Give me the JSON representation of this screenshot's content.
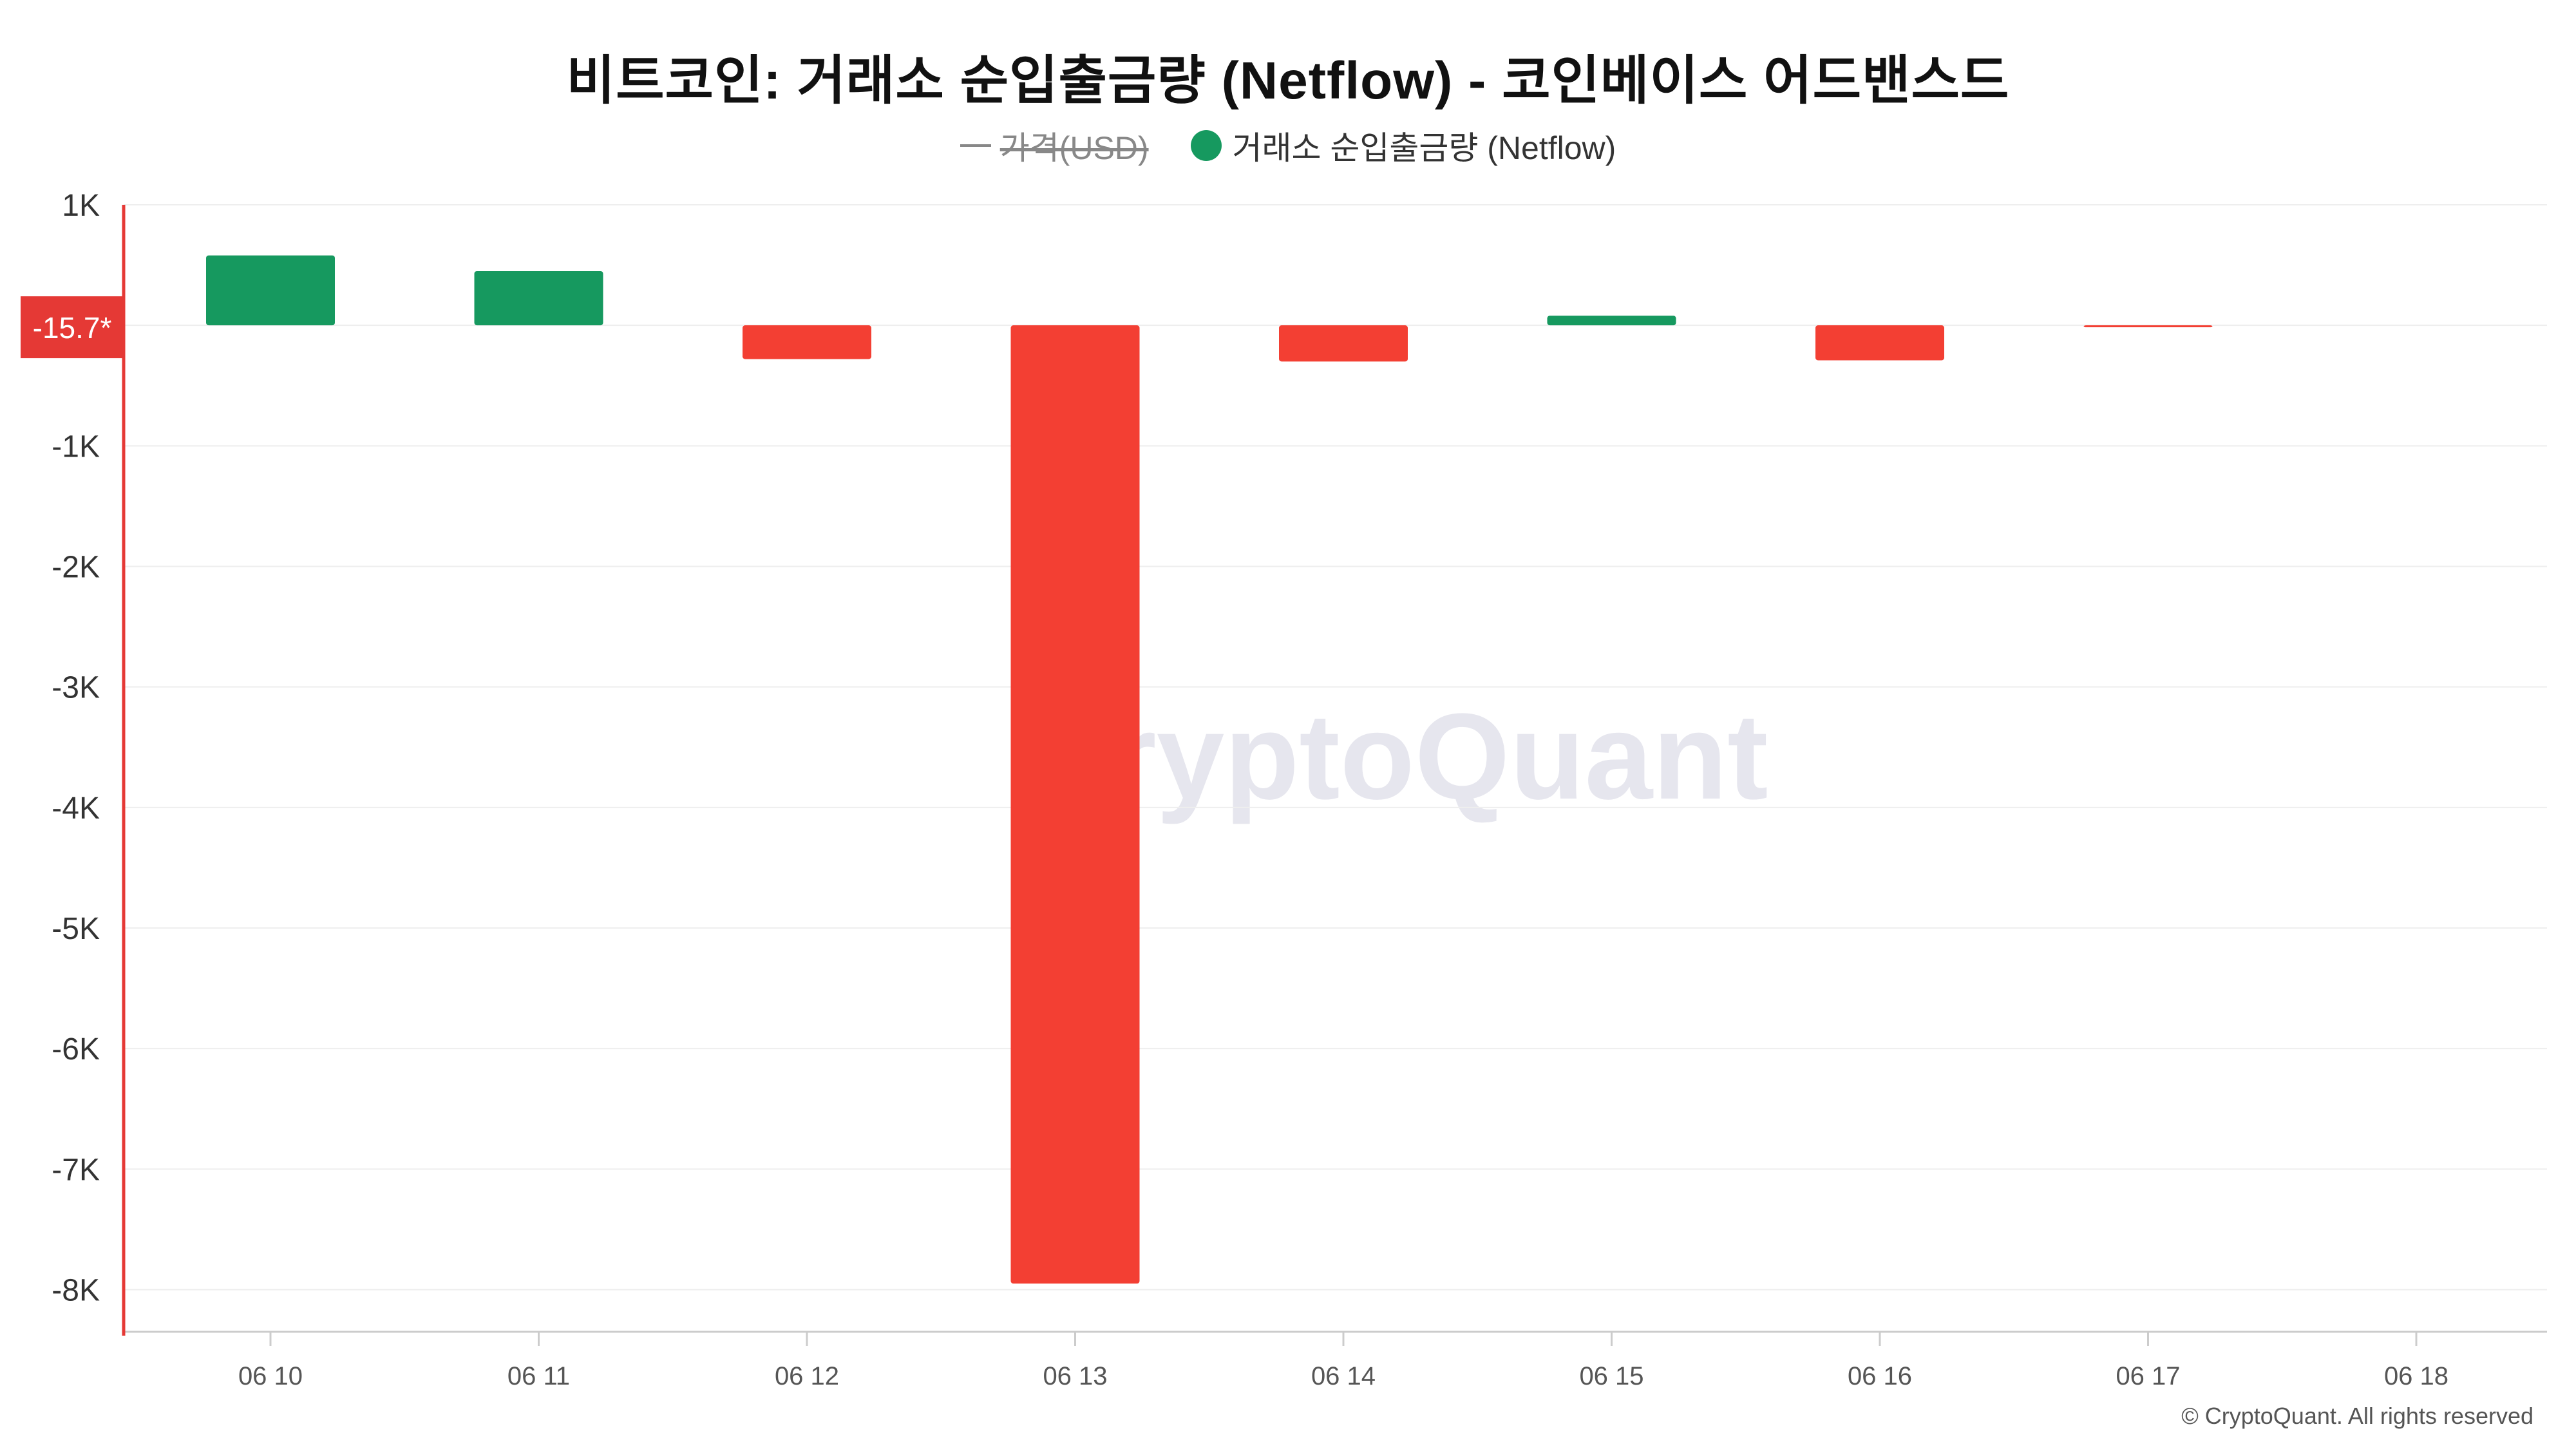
{
  "chart_data": {
    "type": "bar",
    "title": "비트코인: 거래소 순입출금량 (Netflow) - 코인베이스 어드밴스드",
    "categories": [
      "06 10",
      "06 11",
      "06 12",
      "06 13",
      "06 14",
      "06 15",
      "06 16",
      "06 17",
      "06 18"
    ],
    "series": [
      {
        "name": "거래소 순입출금량 (Netflow)",
        "values": [
          580,
          450,
          -280,
          -7950,
          -300,
          80,
          -290,
          -15.7,
          null
        ]
      }
    ],
    "legend": [
      {
        "label": "가격(USD)",
        "disabled": true
      },
      {
        "label": "거래소 순입출금량 (Netflow)",
        "disabled": false
      }
    ],
    "legend_position": "top-center",
    "ylim": [
      -8350,
      1000
    ],
    "yticks": [
      1000,
      -1000,
      -2000,
      -3000,
      -4000,
      -5000,
      -6000,
      -7000,
      -8000
    ],
    "ytick_labels": [
      "1K",
      "-1K",
      "-2K",
      "-3K",
      "-4K",
      "-5K",
      "-6K",
      "-7K",
      "-8K"
    ],
    "current_value_label": "-15.7*",
    "current_value": -15.7,
    "grid": true,
    "colors": {
      "positive": "#16995f",
      "negative": "#f33f33",
      "axis": "#e53935",
      "grid": "#eeeeee"
    },
    "watermark": "CryptoQuant"
  },
  "copyright": "© CryptoQuant. All rights reserved"
}
